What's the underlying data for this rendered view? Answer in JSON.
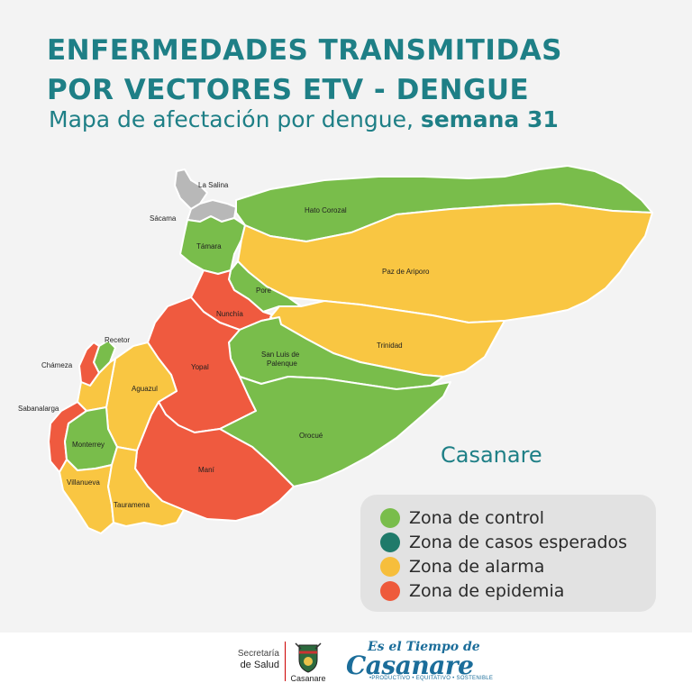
{
  "header": {
    "title_line1": "ENFERMEDADES TRANSMITIDAS",
    "title_line2": "POR VECTORES ETV - DENGUE",
    "subtitle_prefix": "Mapa de afectación por dengue, ",
    "subtitle_bold": "semana 31"
  },
  "map": {
    "region_name": "Casanare",
    "municipalities": [
      {
        "name": "La Salina",
        "zone": "sin_datos"
      },
      {
        "name": "Sácama",
        "zone": "sin_datos"
      },
      {
        "name": "Hato Corozal",
        "zone": "control"
      },
      {
        "name": "Támara",
        "zone": "control"
      },
      {
        "name": "Paz de Ariporo",
        "zone": "alarma"
      },
      {
        "name": "Pore",
        "zone": "control"
      },
      {
        "name": "Nunchía",
        "zone": "epidemia"
      },
      {
        "name": "Trinidad",
        "zone": "alarma"
      },
      {
        "name": "Recetor",
        "zone": "control"
      },
      {
        "name": "Chámeza",
        "zone": "epidemia"
      },
      {
        "name": "San Luis de Palenque",
        "zone": "control"
      },
      {
        "name": "Yopal",
        "zone": "epidemia"
      },
      {
        "name": "Aguazul",
        "zone": "alarma"
      },
      {
        "name": "Sabanalarga",
        "zone": "epidemia"
      },
      {
        "name": "Monterrey",
        "zone": "control"
      },
      {
        "name": "Orocué",
        "zone": "control"
      },
      {
        "name": "Maní",
        "zone": "epidemia"
      },
      {
        "name": "Villanueva",
        "zone": "alarma"
      },
      {
        "name": "Tauramena",
        "zone": "alarma"
      }
    ],
    "label_names": {
      "la_salina": "La Salina",
      "sacama": "Sácama",
      "hato_corozal": "Hato Corozal",
      "tamara": "Támara",
      "paz_de_ariporo": "Paz de Ariporo",
      "pore": "Pore",
      "nunchia": "Nunchía",
      "trinidad": "Trinidad",
      "recetor": "Recetor",
      "chameza": "Chámeza",
      "san_luis_1": "San Luis de",
      "san_luis_2": "Palenque",
      "yopal": "Yopal",
      "aguazul": "Aguazul",
      "sabanalarga": "Sabanalarga",
      "monterrey": "Monterrey",
      "orocue": "Orocué",
      "mani": "Maní",
      "villanueva": "Villanueva",
      "tauramena": "Tauramena"
    }
  },
  "legend": [
    {
      "label": "Zona de control",
      "color": "#79bd4b"
    },
    {
      "label": "Zona de casos esperados",
      "color": "#1f7a6a"
    },
    {
      "label": "Zona de alarma",
      "color": "#f6be3c"
    },
    {
      "label": "Zona de epidemia",
      "color": "#ee5a3b"
    }
  ],
  "colors": {
    "control": "#79bd4b",
    "alarma": "#f9c642",
    "epidemia": "#ef5a3f",
    "sin_datos": "#b8b8b8",
    "accent": "#1e7f86"
  },
  "footer": {
    "secretaria_line1": "Secretaría",
    "secretaria_line2": "de Salud",
    "crest_caption": "Casanare",
    "brand_line1": "Es el Tiempo de",
    "brand_line2": "Casanare",
    "brand_tagline": "•PRODUCTIVO • EQUITATIVO • SOSTENIBLE"
  }
}
